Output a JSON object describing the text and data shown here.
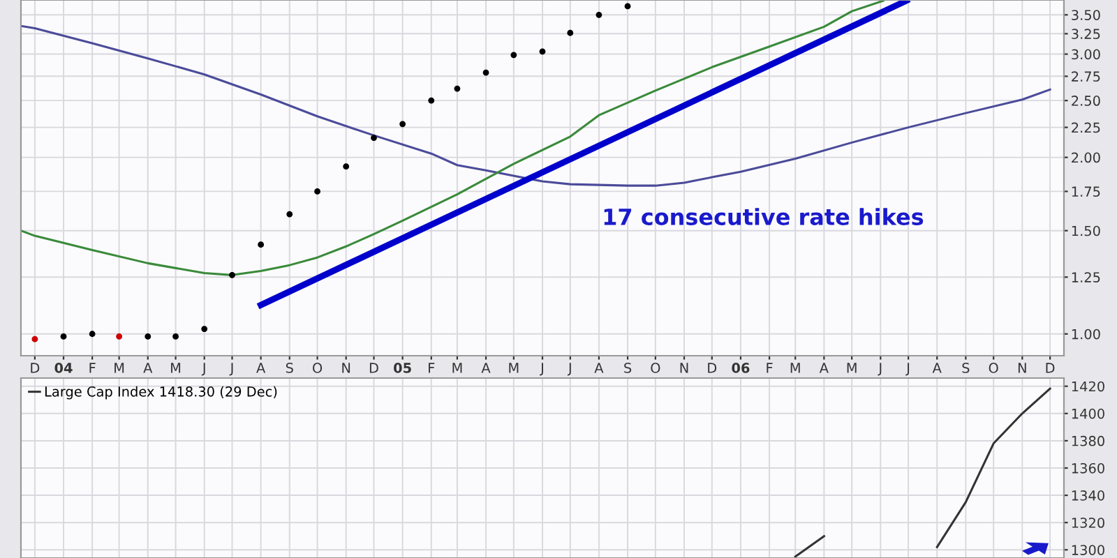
{
  "chart_data": [
    {
      "type": "line",
      "log": true,
      "grid": true,
      "legend": false,
      "xlim": [
        "2003-11-16",
        "2006-12-16"
      ],
      "ylim": [
        0.918,
        3.71
      ],
      "yticks": [
        {
          "value": 1.0,
          "label": "1.00"
        },
        {
          "value": 1.25,
          "label": "1.25"
        },
        {
          "value": 1.5,
          "label": "1.50"
        },
        {
          "value": 1.75,
          "label": "1.75"
        },
        {
          "value": 2.0,
          "label": "2.00"
        },
        {
          "value": 2.25,
          "label": "2.25"
        },
        {
          "value": 2.5,
          "label": "2.50"
        },
        {
          "value": 2.75,
          "label": "2.75"
        },
        {
          "value": 3.0,
          "label": "3.00"
        },
        {
          "value": 3.25,
          "label": "3.25"
        },
        {
          "value": 3.5,
          "label": "3.50"
        }
      ],
      "xticks": [
        {
          "value": "2003-12-01",
          "label": "D"
        },
        {
          "value": "2004-01-01",
          "label": "04"
        },
        {
          "value": "2004-02-01",
          "label": "F"
        },
        {
          "value": "2004-03-01",
          "label": "M"
        },
        {
          "value": "2004-04-01",
          "label": "A"
        },
        {
          "value": "2004-05-01",
          "label": "M"
        },
        {
          "value": "2004-06-01",
          "label": "J"
        },
        {
          "value": "2004-07-01",
          "label": "J"
        },
        {
          "value": "2004-08-01",
          "label": "A"
        },
        {
          "value": "2004-09-01",
          "label": "S"
        },
        {
          "value": "2004-10-01",
          "label": "O"
        },
        {
          "value": "2004-11-01",
          "label": "N"
        },
        {
          "value": "2004-12-01",
          "label": "D"
        },
        {
          "value": "2005-01-01",
          "label": "05"
        },
        {
          "value": "2005-02-01",
          "label": "F"
        },
        {
          "value": "2005-03-01",
          "label": "M"
        },
        {
          "value": "2005-04-01",
          "label": "A"
        },
        {
          "value": "2005-05-01",
          "label": "M"
        },
        {
          "value": "2005-06-01",
          "label": "J"
        },
        {
          "value": "2005-07-01",
          "label": "J"
        },
        {
          "value": "2005-08-01",
          "label": "A"
        },
        {
          "value": "2005-09-01",
          "label": "S"
        },
        {
          "value": "2005-10-01",
          "label": "O"
        },
        {
          "value": "2005-11-01",
          "label": "N"
        },
        {
          "value": "2005-12-01",
          "label": "D"
        },
        {
          "value": "2006-01-01",
          "label": "06"
        },
        {
          "value": "2006-02-01",
          "label": "F"
        },
        {
          "value": "2006-03-01",
          "label": "M"
        },
        {
          "value": "2006-04-01",
          "label": "A"
        },
        {
          "value": "2006-05-01",
          "label": "M"
        },
        {
          "value": "2006-06-01",
          "label": "J"
        },
        {
          "value": "2006-07-01",
          "label": "J"
        },
        {
          "value": "2006-08-01",
          "label": "A"
        },
        {
          "value": "2006-09-01",
          "label": "S"
        },
        {
          "value": "2006-10-01",
          "label": "O"
        },
        {
          "value": "2006-11-01",
          "label": "N"
        },
        {
          "value": "2006-12-01",
          "label": "D"
        }
      ],
      "annotations": [
        "17 consecutive rate hikes"
      ],
      "series": [
        {
          "type": "scatter",
          "color": "#000000",
          "colors": [
            "#cc0000",
            "#000000",
            "#000000",
            "#cc0000",
            "#000000",
            "#000000",
            "#000000",
            "#000000",
            "#000000",
            "#000000",
            "#000000",
            "#000000",
            "#000000",
            "#000000",
            "#000000",
            "#000000",
            "#000000",
            "#000000",
            "#000000",
            "#000000",
            "#000000",
            "#000000"
          ],
          "x": [
            "2003-12-01",
            "2004-01-01",
            "2004-02-01",
            "2004-03-01",
            "2004-04-01",
            "2004-05-01",
            "2004-06-01",
            "2004-07-01",
            "2004-08-01",
            "2004-09-01",
            "2004-10-01",
            "2004-11-01",
            "2004-12-01",
            "2005-01-01",
            "2005-02-01",
            "2005-03-01",
            "2005-04-01",
            "2005-05-01",
            "2005-06-01",
            "2005-07-01",
            "2005-08-01",
            "2005-09-01"
          ],
          "values": [
            0.98,
            0.99,
            1.0,
            0.99,
            0.99,
            0.99,
            1.02,
            1.26,
            1.42,
            1.6,
            1.75,
            1.93,
            2.16,
            2.28,
            2.5,
            2.62,
            2.79,
            2.99,
            3.03,
            3.26,
            3.5,
            3.62
          ]
        },
        {
          "type": "line",
          "color": "#4b4b9a",
          "x": [
            "2003-11-16",
            "2003-12-01",
            "2004-02-01",
            "2004-04-01",
            "2004-06-01",
            "2004-08-01",
            "2004-10-01",
            "2004-12-01",
            "2005-02-01",
            "2005-03-01",
            "2005-04-01",
            "2005-06-01",
            "2005-07-01",
            "2005-09-01",
            "2005-10-01",
            "2005-11-01",
            "2005-12-01",
            "2006-01-01",
            "2006-03-01",
            "2006-05-01",
            "2006-07-01",
            "2006-09-01",
            "2006-11-01",
            "2006-12-01"
          ],
          "values": [
            3.35,
            3.32,
            3.13,
            2.95,
            2.77,
            2.56,
            2.35,
            2.18,
            2.03,
            1.94,
            1.9,
            1.82,
            1.8,
            1.79,
            1.79,
            1.81,
            1.85,
            1.89,
            1.99,
            2.12,
            2.25,
            2.38,
            2.51,
            2.61
          ]
        },
        {
          "type": "line",
          "color": "#3a8a3a",
          "x": [
            "2003-11-16",
            "2003-12-01",
            "2004-02-01",
            "2004-04-01",
            "2004-06-01",
            "2004-07-01",
            "2004-08-01",
            "2004-09-01",
            "2004-10-01",
            "2004-11-01",
            "2004-12-01",
            "2005-01-01",
            "2005-03-01",
            "2005-05-01",
            "2005-07-01",
            "2005-08-01",
            "2005-10-01",
            "2005-12-01",
            "2006-02-01",
            "2006-04-01",
            "2006-05-01",
            "2006-06-04"
          ],
          "values": [
            1.5,
            1.47,
            1.39,
            1.32,
            1.27,
            1.26,
            1.28,
            1.31,
            1.35,
            1.41,
            1.48,
            1.56,
            1.73,
            1.95,
            2.17,
            2.36,
            2.6,
            2.85,
            3.09,
            3.34,
            3.55,
            3.7
          ]
        },
        {
          "type": "line",
          "color": "#0000cc",
          "x": [
            "2004-08-01",
            "2006-06-29"
          ],
          "values": [
            1.12,
            3.7
          ]
        }
      ]
    },
    {
      "type": "line",
      "grid": true,
      "legend": "top left",
      "tick_labels": "y",
      "xlim": [
        "2003-11-16",
        "2006-12-16"
      ],
      "ylim": [
        1294,
        1426
      ],
      "yticks": [
        1300,
        1320,
        1340,
        1360,
        1380,
        1400,
        1420
      ],
      "xticks": [
        {
          "value": "2003-12-01",
          "label": null
        },
        {
          "value": "2004-01-01",
          "label": null
        },
        {
          "value": "2004-02-01",
          "label": null
        },
        {
          "value": "2004-03-01",
          "label": null
        },
        {
          "value": "2004-04-01",
          "label": null
        },
        {
          "value": "2004-05-01",
          "label": null
        },
        {
          "value": "2004-06-01",
          "label": null
        },
        {
          "value": "2004-07-01",
          "label": null
        },
        {
          "value": "2004-08-01",
          "label": null
        },
        {
          "value": "2004-09-01",
          "label": null
        },
        {
          "value": "2004-10-01",
          "label": null
        },
        {
          "value": "2004-11-01",
          "label": null
        },
        {
          "value": "2004-12-01",
          "label": null
        },
        {
          "value": "2005-01-01",
          "label": null
        },
        {
          "value": "2005-02-01",
          "label": null
        },
        {
          "value": "2005-03-01",
          "label": null
        },
        {
          "value": "2005-04-01",
          "label": null
        },
        {
          "value": "2005-05-01",
          "label": null
        },
        {
          "value": "2005-06-01",
          "label": null
        },
        {
          "value": "2005-07-01",
          "label": null
        },
        {
          "value": "2005-08-01",
          "label": null
        },
        {
          "value": "2005-09-01",
          "label": null
        },
        {
          "value": "2005-10-01",
          "label": null
        },
        {
          "value": "2005-11-01",
          "label": null
        },
        {
          "value": "2005-12-01",
          "label": null
        },
        {
          "value": "2006-01-01",
          "label": null
        },
        {
          "value": "2006-02-01",
          "label": null
        },
        {
          "value": "2006-03-01",
          "label": null
        },
        {
          "value": "2006-04-01",
          "label": null
        },
        {
          "value": "2006-05-01",
          "label": null
        },
        {
          "value": "2006-06-01",
          "label": null
        },
        {
          "value": "2006-07-01",
          "label": null
        },
        {
          "value": "2006-08-01",
          "label": null
        },
        {
          "value": "2006-09-01",
          "label": null
        },
        {
          "value": "2006-10-01",
          "label": null
        },
        {
          "value": "2006-11-01",
          "label": null
        },
        {
          "value": "2006-12-01",
          "label": null
        }
      ],
      "series": [
        {
          "name": "Large Cap Index 1418.30 (29 Dec)",
          "color": "#333333",
          "x": [
            "2006-03-01",
            "2006-04-01",
            "2006-05-01",
            "2006-06-01",
            "2006-07-01",
            "2006-08-01",
            "2006-09-01",
            "2006-10-01",
            "2006-11-01",
            "2006-12-01"
          ],
          "values": [
            1295,
            1310,
            null,
            null,
            null,
            1302,
            1335,
            1378,
            1400,
            1418.3
          ]
        }
      ]
    }
  ]
}
